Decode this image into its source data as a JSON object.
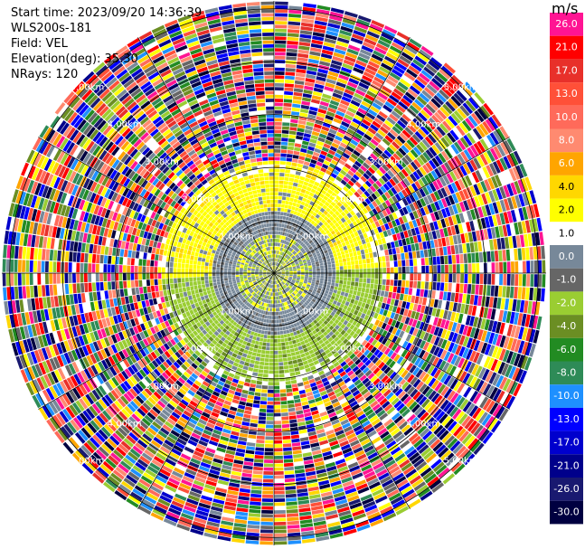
{
  "info": {
    "start_time": "Start time: 2023/09/20 14:36:39",
    "site": "WLS200s-181",
    "field": "Field: VEL",
    "elevation": "Elevation(deg): 35.30",
    "nrays": "NRays: 120"
  },
  "chart_data": {
    "type": "heatmap",
    "projection": "polar-ppi",
    "field": "VEL",
    "nrays": 120,
    "range_rings_km": [
      1.0,
      2.0,
      3.0,
      4.0,
      5.0
    ],
    "ring_labels": [
      "1.00km",
      "2.00km",
      "3.00km",
      "4.00km",
      "5.00km"
    ],
    "colorbar": {
      "unit": "m/s",
      "levels": [
        26.0,
        21.0,
        17.0,
        13.0,
        10.0,
        8.0,
        6.0,
        4.0,
        2.0,
        1.0,
        0.0,
        -1.0,
        -2.0,
        -4.0,
        -6.0,
        -8.0,
        -10.0,
        -13.0,
        -17.0,
        -21.0,
        -26.0,
        -30.0
      ],
      "labels": [
        "26.0",
        "21.0",
        "17.0",
        "13.0",
        "10.0",
        "8.0",
        "6.0",
        "4.0",
        "2.0",
        "1.0",
        "0.0",
        "-1.0",
        "-2.0",
        "-4.0",
        "-6.0",
        "-8.0",
        "-10.0",
        "-13.0",
        "-17.0",
        "-21.0",
        "-26.0",
        "-30.0"
      ],
      "colors": [
        "#ff1493",
        "#ff0000",
        "#e8302a",
        "#ff5038",
        "#ff6a5a",
        "#ff8a70",
        "#ffa500",
        "#ffd700",
        "#ffff00",
        "#ffffff",
        "#778899",
        "#666666",
        "#9acd32",
        "#6b8e23",
        "#228b22",
        "#2e8b57",
        "#1e90ff",
        "#0000ff",
        "#0000cd",
        "#00008b",
        "#191970",
        "#000040"
      ]
    },
    "pattern": {
      "core_range_km": [
        0.0,
        2.1
      ],
      "near_zero_band": "grey/yellow/green rings near radar",
      "far_range": "noisy random velocities beyond ~2.2 km"
    }
  }
}
